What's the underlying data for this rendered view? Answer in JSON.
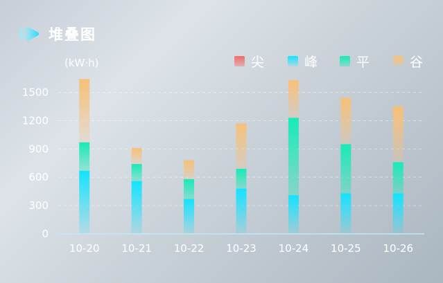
{
  "header": {
    "title": "堆叠图"
  },
  "chart_data": {
    "type": "bar",
    "stacked": true,
    "title": "堆叠图",
    "ylabel": "(kW·h)",
    "xlabel": "",
    "categories": [
      "10-20",
      "10-21",
      "10-22",
      "10-23",
      "10-24",
      "10-25",
      "10-26"
    ],
    "series": [
      {
        "name": "尖",
        "color": "#f26a6a",
        "values": [
          0,
          0,
          0,
          0,
          0,
          0,
          0
        ]
      },
      {
        "name": "峰",
        "color": "#13e3ff",
        "values": [
          670,
          560,
          370,
          480,
          410,
          430,
          430
        ]
      },
      {
        "name": "平",
        "color": "#17eab8",
        "values": [
          300,
          180,
          210,
          210,
          820,
          520,
          330
        ]
      },
      {
        "name": "谷",
        "color": "#f8c078",
        "values": [
          670,
          170,
          200,
          480,
          400,
          490,
          590
        ]
      }
    ],
    "ylim": [
      0,
      1650
    ],
    "yticks": [
      0,
      300,
      600,
      900,
      1200,
      1500
    ],
    "grid": true,
    "legend": "top-right"
  }
}
